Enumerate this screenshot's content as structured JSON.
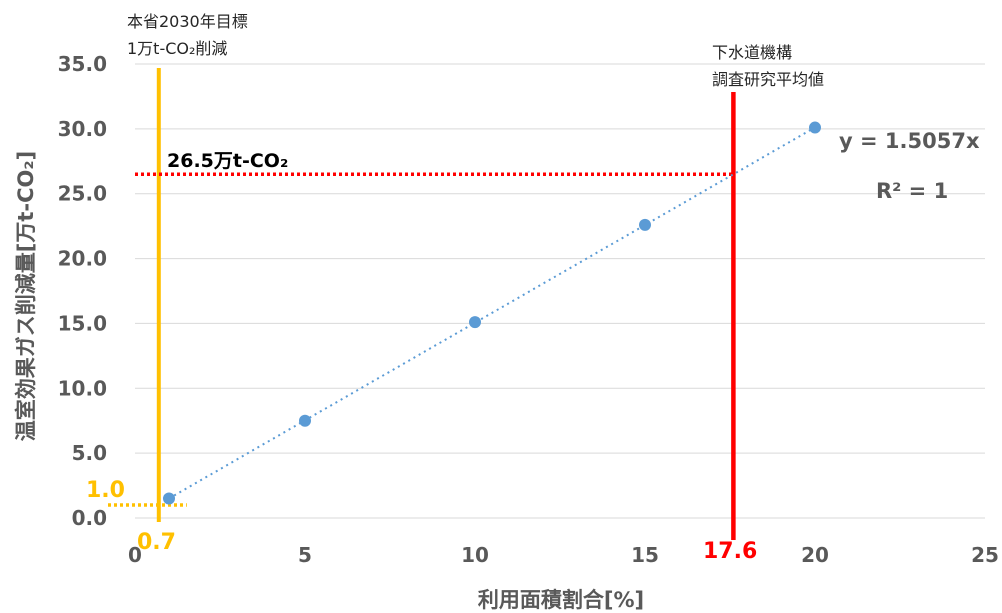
{
  "chart_data": {
    "type": "scatter",
    "x": [
      1,
      5,
      10,
      15,
      20
    ],
    "y": [
      1.5,
      7.5,
      15.1,
      22.6,
      30.1
    ],
    "xlim": [
      0,
      25
    ],
    "ylim": [
      0,
      35
    ],
    "xticks": [
      "0",
      "5",
      "10",
      "15",
      "20",
      "25"
    ],
    "yticks": [
      "0.0",
      "5.0",
      "10.0",
      "15.0",
      "20.0",
      "25.0",
      "30.0",
      "35.0"
    ],
    "xlabel": "利用面積割合[%]",
    "ylabel": "温室効果ガス削減量[万t-CO₂]",
    "grid": "horizontal",
    "series_color": "#5b9bd5",
    "trendline": {
      "slope": 1.5057,
      "equation": "y = 1.5057x",
      "r2": "R² = 1"
    },
    "annotations": {
      "target": {
        "line1": "本省2030年目標",
        "line2": "1万t-CO₂削減",
        "x": 0.7,
        "y": 1.0,
        "x_label": "0.7",
        "y_label": "1.0",
        "color": "#ffc000"
      },
      "survey": {
        "line1": "下水道機構",
        "line2": "調査研究平均値",
        "x": 17.6,
        "y": 26.5,
        "x_label": "17.6",
        "y_label": "26.5万t-CO₂",
        "color": "#ff0000"
      }
    }
  }
}
